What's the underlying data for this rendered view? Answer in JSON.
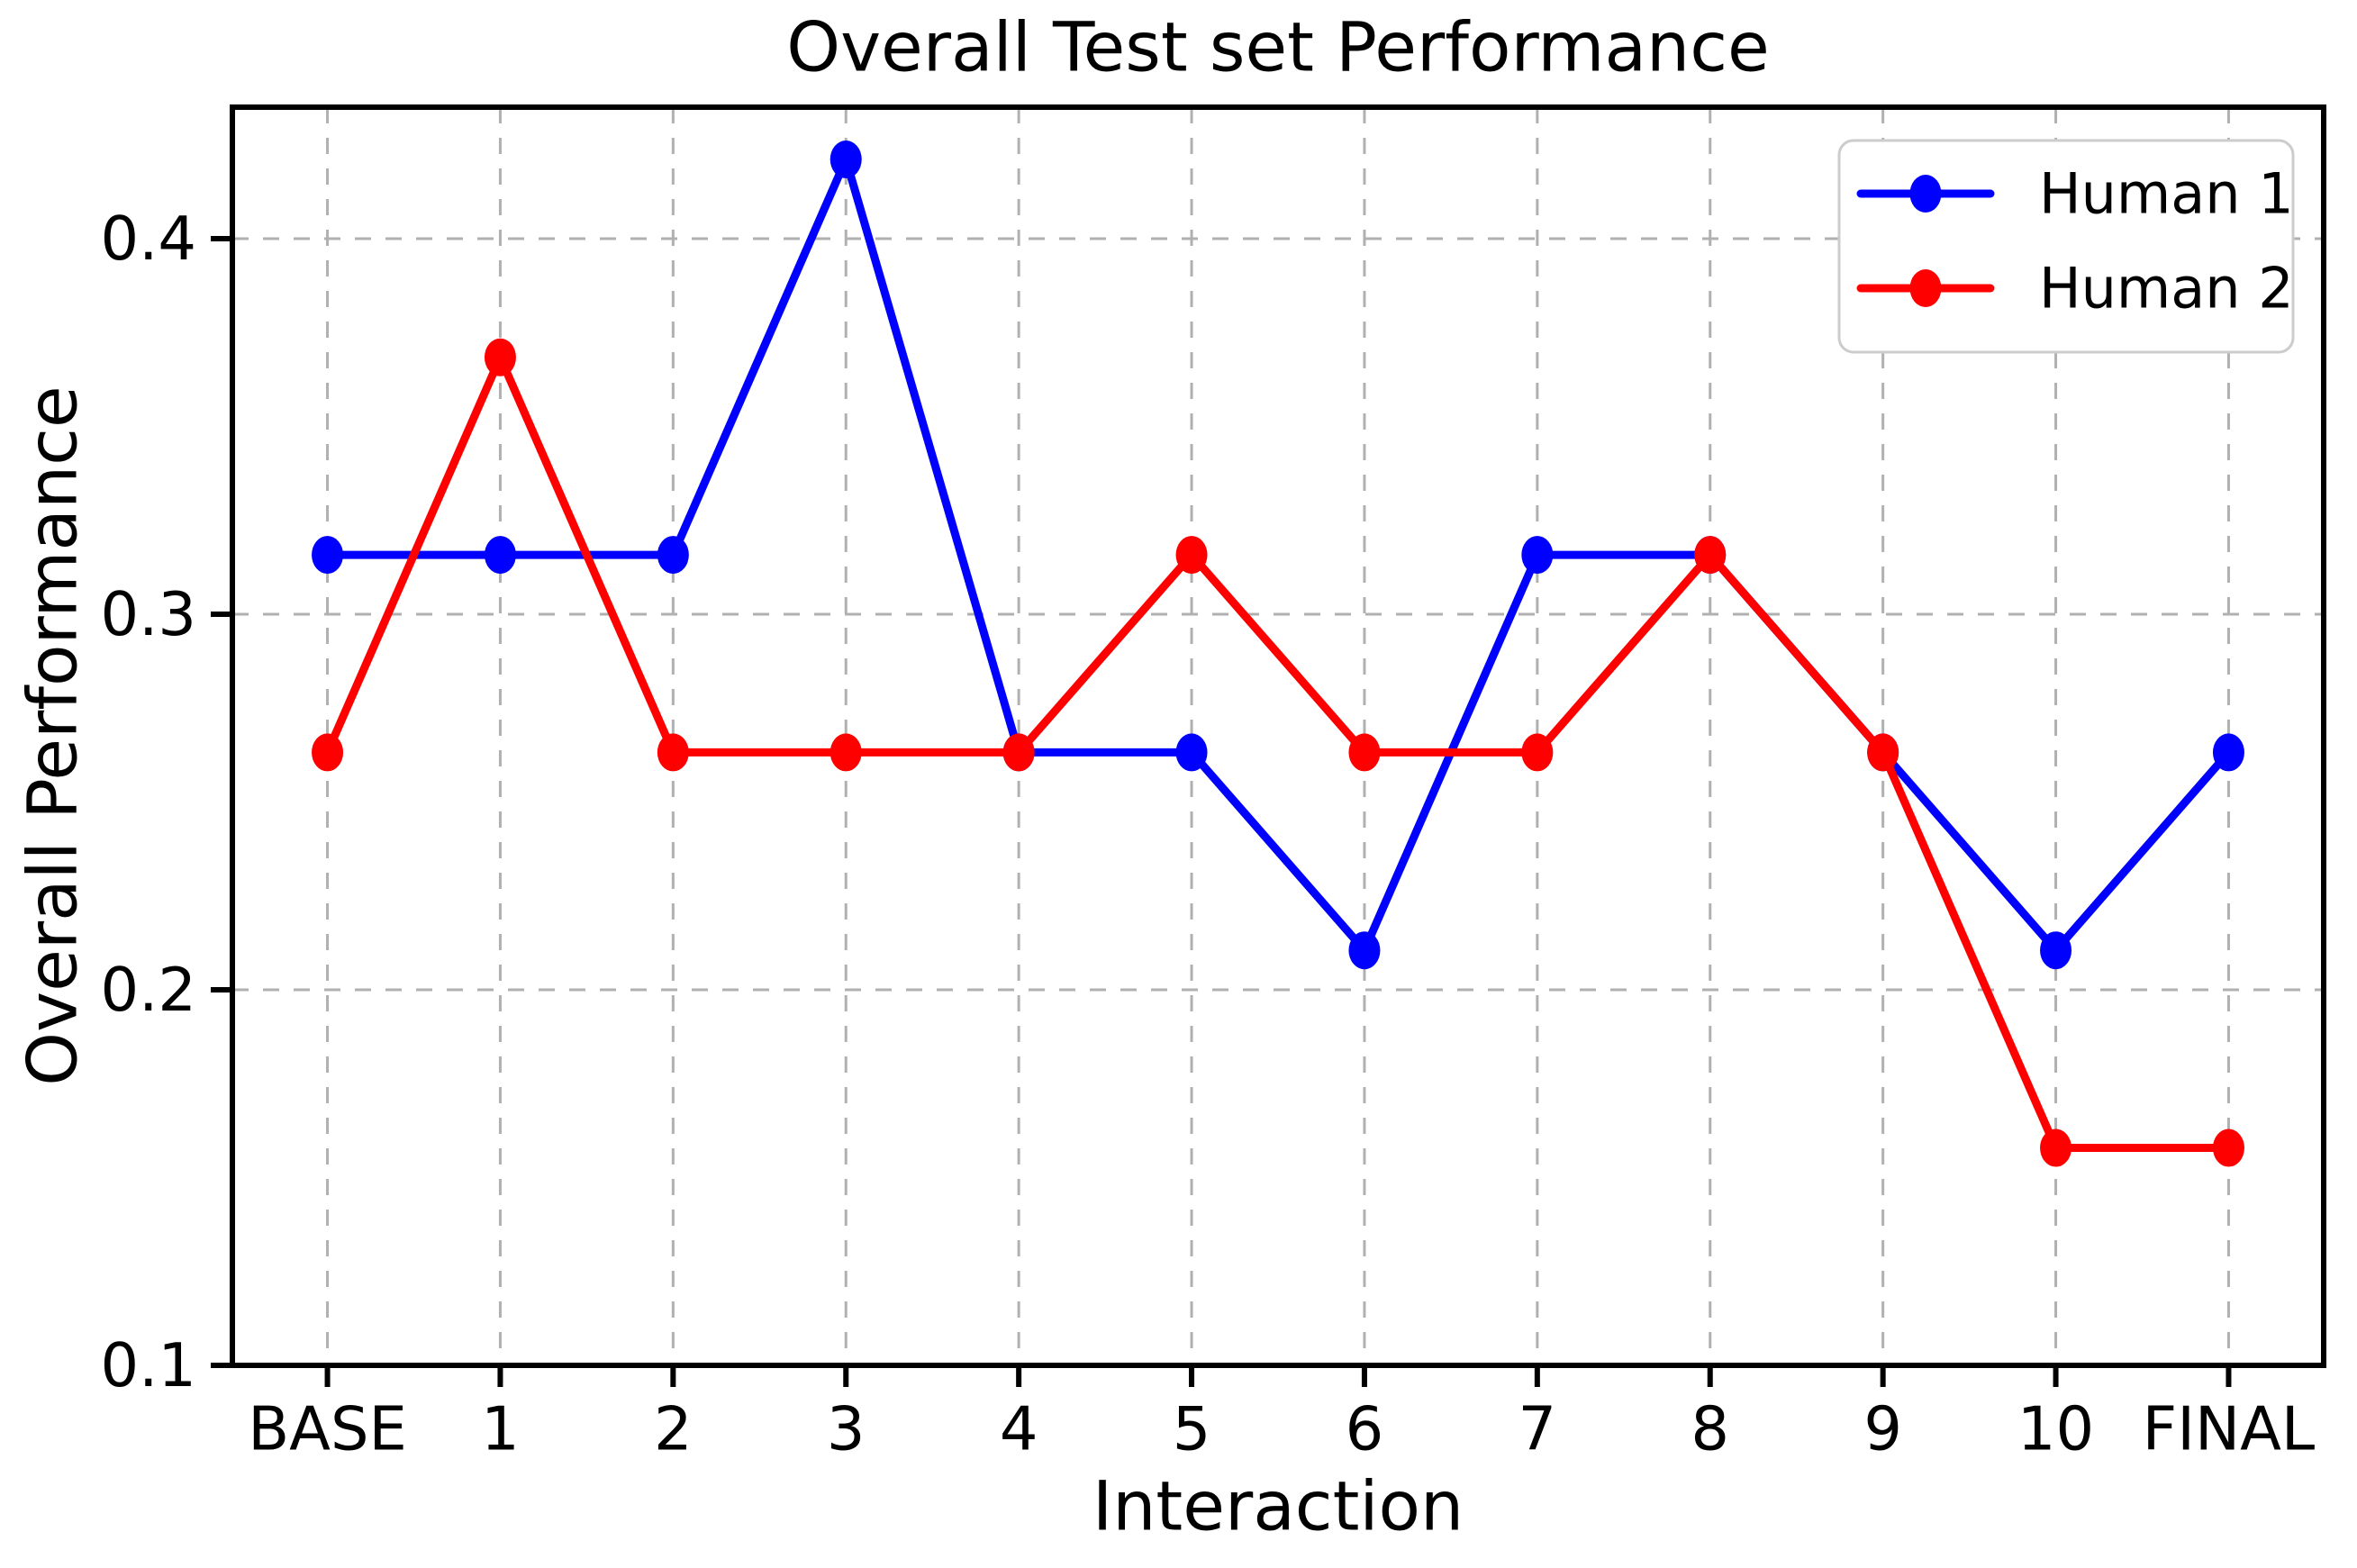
{
  "chart_data": {
    "type": "line",
    "title": "Overall Test set Performance",
    "xlabel": "Interaction",
    "ylabel": "Overall Performance",
    "categories": [
      "BASE",
      "1",
      "2",
      "3",
      "4",
      "5",
      "6",
      "7",
      "8",
      "9",
      "10",
      "FINAL"
    ],
    "series": [
      {
        "name": "Human 1",
        "color": "#0000ff",
        "values": [
          0.3158,
          0.3158,
          0.3158,
          0.4211,
          0.2632,
          0.2632,
          0.2105,
          0.3158,
          0.3158,
          0.2632,
          0.2105,
          0.2632
        ]
      },
      {
        "name": "Human 2",
        "color": "#ff0000",
        "values": [
          0.2632,
          0.3684,
          0.2632,
          0.2632,
          0.2632,
          0.3158,
          0.2632,
          0.2632,
          0.3158,
          0.2632,
          0.1579,
          0.1579
        ]
      }
    ],
    "yticks": {
      "values": [
        0.1,
        0.2,
        0.3,
        0.4
      ],
      "labels": [
        "0.1",
        "0.2",
        "0.3",
        "0.4"
      ]
    },
    "ylim": [
      0.1,
      0.435
    ],
    "grid": true,
    "legend": {
      "position": "upper right",
      "entries": [
        "Human 1",
        "Human 2"
      ]
    },
    "colors": {
      "axis": "#000000",
      "grid": "#b0b0b0",
      "background": "#ffffff",
      "legend_border": "#cccccc",
      "text": "#000000"
    }
  }
}
